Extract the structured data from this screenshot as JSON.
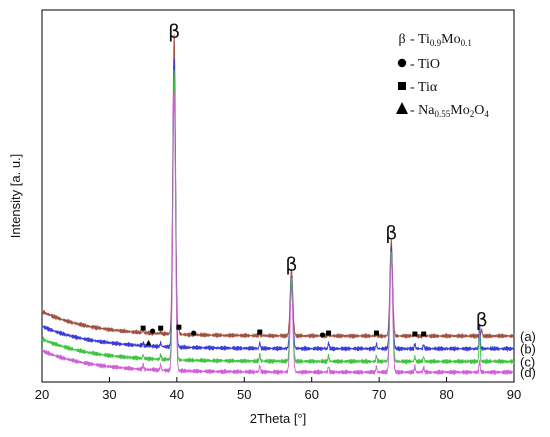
{
  "chart_data": {
    "type": "line",
    "xlabel": "2Theta [°]",
    "ylabel": "Intensity [a. u.]",
    "xlim": [
      20,
      90
    ],
    "x_ticks": [
      20,
      30,
      40,
      50,
      60,
      70,
      80,
      90
    ],
    "grid": false,
    "legend_position": "top-right",
    "series": [
      {
        "name": "(a)",
        "color": "#a0523f",
        "baseline": 0.47,
        "background_start": 0.72,
        "peaks": [
          [
            35.0,
            0.02
          ],
          [
            37.6,
            0.02
          ],
          [
            39.6,
            3.05
          ],
          [
            40.3,
            0.05
          ],
          [
            52.3,
            0.02
          ],
          [
            57.0,
            0.68
          ],
          [
            62.5,
            0.02
          ],
          [
            69.6,
            0.02
          ],
          [
            71.8,
            0.97
          ],
          [
            75.3,
            0.02
          ],
          [
            76.6,
            0.02
          ],
          [
            85.2,
            0.07
          ]
        ]
      },
      {
        "name": "(b)",
        "color": "#3b3bd6",
        "baseline": 0.34,
        "background_start": 0.57,
        "peaks": [
          [
            35.0,
            0.03
          ],
          [
            37.6,
            0.04
          ],
          [
            39.6,
            2.95
          ],
          [
            52.3,
            0.06
          ],
          [
            57.0,
            0.75
          ],
          [
            62.5,
            0.06
          ],
          [
            69.6,
            0.05
          ],
          [
            71.8,
            1.05
          ],
          [
            75.3,
            0.05
          ],
          [
            76.6,
            0.04
          ],
          [
            84.9,
            0.26
          ]
        ]
      },
      {
        "name": "(c)",
        "color": "#3ec43e",
        "baseline": 0.21,
        "background_start": 0.44,
        "peaks": [
          [
            35.0,
            0.04
          ],
          [
            37.6,
            0.05
          ],
          [
            39.6,
            2.95
          ],
          [
            52.3,
            0.07
          ],
          [
            57.0,
            0.85
          ],
          [
            62.5,
            0.06
          ],
          [
            69.6,
            0.06
          ],
          [
            71.8,
            1.12
          ],
          [
            75.3,
            0.05
          ],
          [
            76.6,
            0.05
          ],
          [
            84.9,
            0.3
          ]
        ]
      },
      {
        "name": "(d)",
        "color": "#d060d8",
        "baseline": 0.1,
        "background_start": 0.32,
        "peaks": [
          [
            35.0,
            0.05
          ],
          [
            37.6,
            0.06
          ],
          [
            39.6,
            2.85
          ],
          [
            52.3,
            0.07
          ],
          [
            57.0,
            0.88
          ],
          [
            62.5,
            0.06
          ],
          [
            69.6,
            0.06
          ],
          [
            71.8,
            1.18
          ],
          [
            75.3,
            0.06
          ],
          [
            76.6,
            0.05
          ],
          [
            84.9,
            0.12
          ]
        ]
      }
    ],
    "annotations": {
      "beta_peaks": [
        {
          "label": "β",
          "x": 39.6,
          "y": 3.52
        },
        {
          "label": "β",
          "x": 57.0,
          "y": 1.14
        },
        {
          "label": "β",
          "x": 71.8,
          "y": 1.46
        },
        {
          "label": "β",
          "x": 85.2,
          "y": 0.57
        }
      ],
      "square_markers": [
        {
          "x": 35.0,
          "y": 0.55
        },
        {
          "x": 37.6,
          "y": 0.55
        },
        {
          "x": 40.3,
          "y": 0.56
        },
        {
          "x": 52.3,
          "y": 0.51
        },
        {
          "x": 62.5,
          "y": 0.5
        },
        {
          "x": 69.6,
          "y": 0.5
        },
        {
          "x": 75.3,
          "y": 0.49
        },
        {
          "x": 76.6,
          "y": 0.49
        }
      ],
      "circle_markers": [
        {
          "x": 36.4,
          "y": 0.52
        },
        {
          "x": 42.5,
          "y": 0.5
        },
        {
          "x": 61.6,
          "y": 0.48
        }
      ],
      "triangle_markers": [
        {
          "x": 35.8,
          "y": 0.4
        }
      ]
    },
    "legend": [
      {
        "symbol": "β",
        "dash": "-",
        "text": "Ti",
        "sub1": "0.9",
        "text2": "Mo",
        "sub2": "0.1"
      },
      {
        "symbol": "circle",
        "dash": "-",
        "text": "TiO"
      },
      {
        "symbol": "square",
        "dash": "-",
        "text": "Tiα"
      },
      {
        "symbol": "triangle",
        "dash": "-",
        "text": "Na",
        "sub1": "0.55",
        "text2": "Mo",
        "sub2": "2",
        "text3": "O",
        "sub3": "4"
      }
    ]
  }
}
